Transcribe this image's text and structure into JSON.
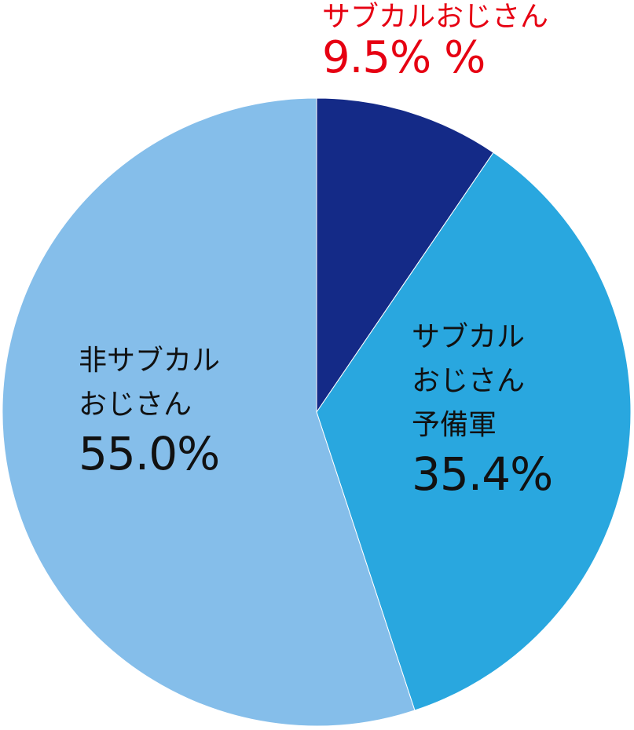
{
  "chart_data": {
    "type": "pie",
    "start_angle": "12 o'clock",
    "direction": "clockwise",
    "slices": [
      {
        "label_lines": [
          "サブカルおじさん"
        ],
        "value": 9.5,
        "value_label": "9.5% %",
        "color": "#142a87",
        "label_color": "#e60012"
      },
      {
        "label_lines": [
          "サブカル",
          "おじさん",
          "予備軍"
        ],
        "value": 35.4,
        "value_label": "35.4%",
        "color": "#29a7df",
        "label_color": "#111111"
      },
      {
        "label_lines": [
          "非サブカル",
          "おじさん"
        ],
        "value": 55.0,
        "value_label": "55.0%",
        "color": "#85beea",
        "label_color": "#111111"
      }
    ]
  }
}
